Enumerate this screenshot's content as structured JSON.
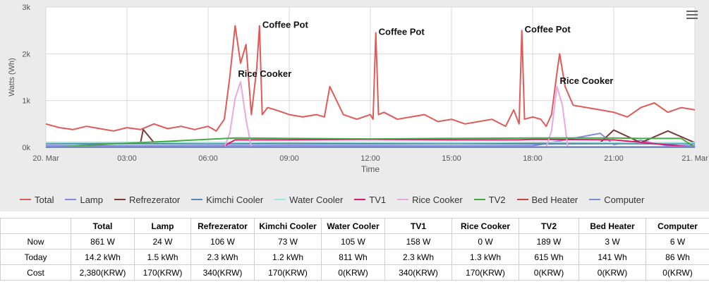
{
  "chart_data": {
    "type": "line",
    "ylabel": "Watts (Wh)",
    "xlabel": "Time",
    "x_ticks": [
      "20. Mar",
      "03:00",
      "06:00",
      "09:00",
      "12:00",
      "15:00",
      "18:00",
      "21:00",
      "21. Mar"
    ],
    "y_ticks": [
      "0k",
      "1k",
      "2k",
      "3k"
    ],
    "ylim": [
      0,
      3000
    ],
    "xlim_hours": [
      0,
      24
    ],
    "grid": true,
    "legend_position": "bottom",
    "annotations": [
      {
        "label": "Coffee Pot",
        "x_hour": 7.9,
        "y": 2600
      },
      {
        "label": "Coffee Pot",
        "x_hour": 12.2,
        "y": 2450
      },
      {
        "label": "Coffee Pot",
        "x_hour": 17.6,
        "y": 2500
      },
      {
        "label": "Rice Cooker",
        "x_hour": 7.0,
        "y": 1550
      },
      {
        "label": "Rice Cooker",
        "x_hour": 18.9,
        "y": 1400
      }
    ],
    "series": [
      {
        "name": "Total",
        "color": "#e05a5a",
        "x_hours": [
          0,
          0.5,
          1,
          1.5,
          2,
          2.5,
          3,
          3.5,
          4,
          4.5,
          5,
          5.5,
          6,
          6.3,
          6.6,
          6.8,
          7.0,
          7.2,
          7.4,
          7.6,
          7.8,
          7.9,
          8.0,
          8.2,
          8.5,
          9,
          9.5,
          10,
          10.3,
          10.5,
          11,
          11.5,
          12,
          12.1,
          12.2,
          12.3,
          12.5,
          13,
          13.5,
          14,
          14.5,
          15,
          15.5,
          16,
          16.5,
          17,
          17.3,
          17.5,
          17.6,
          17.7,
          18,
          18.3,
          18.5,
          18.7,
          18.9,
          19.0,
          19.2,
          19.5,
          20,
          20.5,
          21,
          21.5,
          22,
          22.5,
          23,
          23.5,
          24
        ],
        "values": [
          500,
          420,
          380,
          450,
          400,
          350,
          420,
          380,
          500,
          400,
          450,
          380,
          450,
          350,
          600,
          1500,
          2600,
          1800,
          2200,
          700,
          1700,
          2600,
          700,
          850,
          800,
          700,
          650,
          700,
          650,
          1300,
          700,
          600,
          700,
          600,
          2450,
          700,
          750,
          600,
          650,
          700,
          550,
          600,
          500,
          550,
          600,
          450,
          800,
          500,
          2500,
          600,
          650,
          600,
          450,
          700,
          1600,
          2000,
          1300,
          900,
          850,
          800,
          750,
          650,
          850,
          950,
          750,
          850,
          800
        ]
      },
      {
        "name": "Lamp",
        "color": "#8888e0",
        "x_hours": [
          0,
          3,
          6,
          9,
          12,
          15,
          18,
          20.5,
          21,
          22,
          23,
          24
        ],
        "values": [
          30,
          30,
          30,
          40,
          30,
          30,
          30,
          300,
          60,
          150,
          30,
          30
        ]
      },
      {
        "name": "Refrezerator",
        "color": "#7a3b3b",
        "x_hours": [
          0,
          1,
          2,
          3.5,
          3.6,
          4,
          6,
          9,
          12,
          15,
          18,
          20.5,
          21,
          22,
          23,
          24
        ],
        "values": [
          100,
          100,
          100,
          100,
          380,
          100,
          100,
          100,
          100,
          100,
          100,
          100,
          370,
          100,
          350,
          100
        ]
      },
      {
        "name": "Kimchi Cooler",
        "color": "#5b87b5",
        "x_hours": [
          0,
          3,
          6,
          9,
          12,
          15,
          18,
          21,
          24
        ],
        "values": [
          70,
          75,
          70,
          80,
          70,
          75,
          70,
          80,
          70
        ]
      },
      {
        "name": "Water Cooler",
        "color": "#9ee8e0",
        "x_hours": [
          0,
          3,
          6,
          9,
          12,
          15,
          18,
          21,
          24
        ],
        "values": [
          100,
          110,
          100,
          110,
          105,
          100,
          110,
          105,
          100
        ]
      },
      {
        "name": "TV1",
        "color": "#e0186e",
        "x_hours": [
          0,
          6.5,
          7,
          9,
          12,
          15,
          17.5,
          18,
          21,
          24
        ],
        "values": [
          0,
          0,
          160,
          160,
          170,
          160,
          160,
          170,
          160,
          0
        ]
      },
      {
        "name": "Rice Cooker",
        "color": "#e8a8e0",
        "x_hours": [
          0,
          6.6,
          6.8,
          7.0,
          7.2,
          7.4,
          7.6,
          18.5,
          18.7,
          18.9,
          19.1,
          19.3,
          24
        ],
        "values": [
          0,
          0,
          300,
          1050,
          1400,
          600,
          0,
          0,
          350,
          1300,
          900,
          0,
          0
        ]
      },
      {
        "name": "TV2",
        "color": "#44aa44",
        "x_hours": [
          0,
          7,
          9,
          12,
          15,
          18,
          21,
          22,
          23.5,
          24
        ],
        "values": [
          0,
          200,
          190,
          180,
          190,
          200,
          200,
          190,
          190,
          0
        ]
      },
      {
        "name": "Bed Heater",
        "color": "#d04040",
        "x_hours": [
          0,
          3,
          6,
          9,
          12,
          15,
          18,
          21,
          24
        ],
        "values": [
          5,
          5,
          5,
          5,
          5,
          5,
          5,
          5,
          5
        ]
      },
      {
        "name": "Computer",
        "color": "#7790c8",
        "x_hours": [
          0,
          3,
          6,
          9,
          12,
          15,
          18,
          21,
          24
        ],
        "values": [
          10,
          10,
          10,
          10,
          10,
          10,
          10,
          10,
          10
        ]
      }
    ]
  },
  "table": {
    "headers": [
      "",
      "Total",
      "Lamp",
      "Refrezerator",
      "Kimchi Cooler",
      "Water Cooler",
      "TV1",
      "Rice Cooker",
      "TV2",
      "Bed Heater",
      "Computer"
    ],
    "rows": [
      [
        "Now",
        "861 W",
        "24 W",
        "106 W",
        "73 W",
        "105 W",
        "158 W",
        "0 W",
        "189 W",
        "3 W",
        "6 W"
      ],
      [
        "Today",
        "14.2 kWh",
        "1.5 kWh",
        "2.3 kWh",
        "1.2 kWh",
        "811 Wh",
        "2.3 kWh",
        "1.3 kWh",
        "615 Wh",
        "141 Wh",
        "86 Wh"
      ],
      [
        "Cost",
        "2,380(KRW)",
        "170(KRW)",
        "340(KRW)",
        "170(KRW)",
        "0(KRW)",
        "340(KRW)",
        "170(KRW)",
        "0(KRW)",
        "0(KRW)",
        "0(KRW)"
      ]
    ]
  }
}
